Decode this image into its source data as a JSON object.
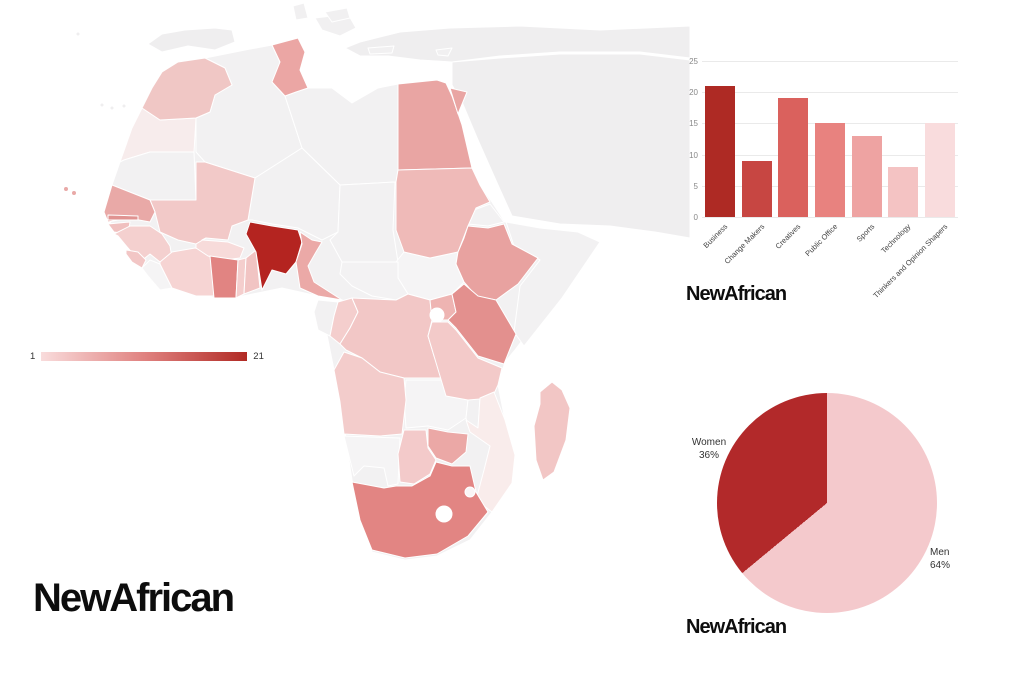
{
  "brand": {
    "text": "NewAfrican"
  },
  "chart_data": [
    {
      "type": "choropleth",
      "title": "",
      "region": "Africa",
      "legend": {
        "min_label": "1",
        "max_label": "21",
        "gradient": [
          "#f9dcdc",
          "#e08280",
          "#b12a24"
        ]
      },
      "no_data_color": "#f2f1f2",
      "context_color": "#efeeef",
      "max_country": {
        "name": "Nigeria",
        "value": 21
      },
      "countries": [
        {
          "id": "spain",
          "name": "Spain",
          "color": "#efeeef"
        },
        {
          "id": "turkey",
          "name": "Turkey",
          "color": "#efeeef"
        },
        {
          "id": "arabia",
          "name": "Arabian Peninsula",
          "color": "#efeeef"
        },
        {
          "id": "greece",
          "name": "Greece",
          "color": "#f1f0f1"
        },
        {
          "id": "crete",
          "name": "Crete",
          "color": "#f1f0f1"
        },
        {
          "id": "cyprus",
          "name": "Cyprus",
          "color": "#f1f0f1"
        },
        {
          "id": "sardinia",
          "name": "Sardinia",
          "color": "#f1f0f1"
        },
        {
          "id": "sicily",
          "name": "Sicily",
          "color": "#f1f0f1"
        },
        {
          "id": "algeria",
          "name": "Algeria",
          "color": "#f2f1f2"
        },
        {
          "id": "libya",
          "name": "Libya",
          "color": "#f2f1f2"
        },
        {
          "id": "western-sahara",
          "name": "Western Sahara",
          "color": "#f7ecec"
        },
        {
          "id": "mauritania",
          "name": "Mauritania",
          "color": "#f2f1f2"
        },
        {
          "id": "niger",
          "name": "Niger",
          "color": "#f2f1f2"
        },
        {
          "id": "chad",
          "name": "Chad",
          "color": "#f2f1f2"
        },
        {
          "id": "eritrea",
          "name": "Eritrea",
          "color": "#f2f1f2"
        },
        {
          "id": "somalia",
          "name": "Somalia",
          "color": "#f2f1f2"
        },
        {
          "id": "south-sudan",
          "name": "South Sudan",
          "color": "#f5f4f5"
        },
        {
          "id": "car",
          "name": "Central African Republic",
          "color": "#f3f2f3"
        },
        {
          "id": "gabon",
          "name": "Gabon",
          "color": "#f2f1f2"
        },
        {
          "id": "liberia",
          "name": "Liberia",
          "color": "#f5f4f5"
        },
        {
          "id": "zambia",
          "name": "Zambia",
          "color": "#f5f4f5"
        },
        {
          "id": "malawi",
          "name": "Malawi",
          "color": "#f2f1f2"
        },
        {
          "id": "namibia",
          "name": "Namibia",
          "color": "#f5f4f5"
        },
        {
          "id": "rwanda",
          "name": "Rwanda",
          "color": "#f5f4f5"
        },
        {
          "id": "burundi",
          "name": "Burundi",
          "color": "#f5f4f5"
        },
        {
          "id": "morocco",
          "name": "Morocco",
          "color": "#f0c7c5"
        },
        {
          "id": "tunisia",
          "name": "Tunisia",
          "color": "#eba6a4"
        },
        {
          "id": "egypt",
          "name": "Egypt",
          "color": "#e9a5a3"
        },
        {
          "id": "sinai",
          "name": "Egypt (Sinai)",
          "color": "#e9a5a3"
        },
        {
          "id": "mali",
          "name": "Mali",
          "color": "#f2c9c8"
        },
        {
          "id": "sudan",
          "name": "Sudan",
          "color": "#efbab8"
        },
        {
          "id": "ethiopia",
          "name": "Ethiopia",
          "color": "#e8a2a0"
        },
        {
          "id": "senegal",
          "name": "Senegal",
          "color": "#e9a9a7"
        },
        {
          "id": "gambia",
          "name": "Gambia",
          "color": "#e09391"
        },
        {
          "id": "guinea-bissau",
          "name": "Guinea-Bissau",
          "color": "#f0c0bf"
        },
        {
          "id": "guinea",
          "name": "Guinea",
          "color": "#f4d0cf"
        },
        {
          "id": "sierra-leone",
          "name": "Sierra Leone",
          "color": "#f2c6c5"
        },
        {
          "id": "ivory-coast",
          "name": "Ivory Coast",
          "color": "#f6d4d3"
        },
        {
          "id": "burkina-faso",
          "name": "Burkina Faso",
          "color": "#f7dbda"
        },
        {
          "id": "ghana",
          "name": "Ghana",
          "color": "#e18482"
        },
        {
          "id": "togo",
          "name": "Togo",
          "color": "#f4cecd"
        },
        {
          "id": "benin",
          "name": "Benin",
          "color": "#f1c4c3"
        },
        {
          "id": "nigeria",
          "name": "Nigeria",
          "color": "#b42420"
        },
        {
          "id": "cameroon",
          "name": "Cameroon",
          "color": "#eba9a7"
        },
        {
          "id": "congo",
          "name": "Congo",
          "color": "#f4cecd"
        },
        {
          "id": "drc",
          "name": "DR Congo",
          "color": "#f2c7c6"
        },
        {
          "id": "uganda",
          "name": "Uganda",
          "color": "#eeb4b2"
        },
        {
          "id": "kenya",
          "name": "Kenya",
          "color": "#e3908e"
        },
        {
          "id": "tanzania",
          "name": "Tanzania",
          "color": "#f3cac9"
        },
        {
          "id": "angola",
          "name": "Angola",
          "color": "#f3cccb"
        },
        {
          "id": "mozambique",
          "name": "Mozambique",
          "color": "#f9eceb"
        },
        {
          "id": "zimbabwe",
          "name": "Zimbabwe",
          "color": "#eba8a6"
        },
        {
          "id": "botswana",
          "name": "Botswana",
          "color": "#f3caca"
        },
        {
          "id": "south-africa",
          "name": "South Africa",
          "color": "#e28583"
        },
        {
          "id": "madagascar",
          "name": "Madagascar",
          "color": "#f2c6c5"
        },
        {
          "id": "canary-a",
          "name": "Canary Islands",
          "color": "#efeeef"
        },
        {
          "id": "canary-b",
          "name": "Canary Islands",
          "color": "#efeeef"
        },
        {
          "id": "canary-c",
          "name": "Canary Islands",
          "color": "#efeeef"
        },
        {
          "id": "madeira",
          "name": "Madeira",
          "color": "#efeeef"
        },
        {
          "id": "cape-verde-a",
          "name": "Cape Verde",
          "color": "#e9a9a7"
        },
        {
          "id": "cape-verde-b",
          "name": "Cape Verde",
          "color": "#e9a9a7"
        },
        {
          "id": "lake-victoria",
          "name": "Lake Victoria",
          "color": "#ffffff"
        },
        {
          "id": "lesotho",
          "name": "Lesotho",
          "color": "#ffffff"
        },
        {
          "id": "eswatini",
          "name": "Eswatini",
          "color": "#faf6f6"
        }
      ]
    },
    {
      "type": "bar",
      "title": "",
      "xlabel": "",
      "ylabel": "",
      "categories": [
        "Business",
        "Change Makers",
        "Creatives",
        "Public Office",
        "Sports",
        "Technology",
        "Thinkers and Opinion Shapers"
      ],
      "values": [
        21,
        9,
        19,
        15,
        13,
        8,
        15
      ],
      "colors": [
        "#ae2a24",
        "#c74642",
        "#da615d",
        "#e8827f",
        "#eea3a2",
        "#f4c3c3",
        "#f9dcdd"
      ],
      "ylim": [
        0,
        25
      ],
      "yticks": [
        0,
        5,
        10,
        15,
        20,
        25
      ],
      "ytick_labels": [
        "0",
        "5",
        "10",
        "15",
        "20",
        "25"
      ],
      "grid": "horizontal"
    },
    {
      "type": "pie",
      "title": "",
      "direction": "clockwise-from-top",
      "slices": [
        {
          "label": "Men",
          "value": 64,
          "pct_label": "64%",
          "color": "#f4c9cc"
        },
        {
          "label": "Women",
          "value": 36,
          "pct_label": "36%",
          "color": "#b2292a"
        }
      ]
    }
  ]
}
